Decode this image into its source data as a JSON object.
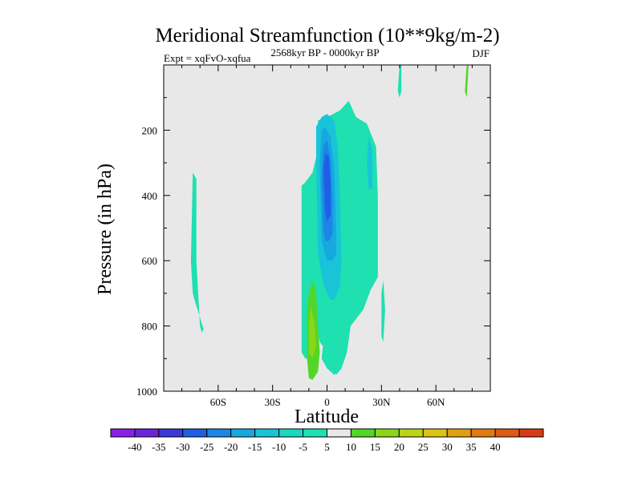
{
  "chart_data": {
    "type": "heatmap",
    "title": "Meridional Streamfunction (10**9kg/m-2)",
    "subtitle_left": "Expt = xqFvO-xqfua",
    "subtitle_center": "2568kyr BP - 0000kyr BP",
    "subtitle_right": "DJF",
    "xlabel": "Latitude",
    "ylabel": "Pressure (in hPa)",
    "xlim": [
      -90,
      90
    ],
    "ylim": [
      1000,
      0
    ],
    "x_ticks": [
      {
        "value": -60,
        "label": "60S"
      },
      {
        "value": -30,
        "label": "30S"
      },
      {
        "value": 0,
        "label": "0"
      },
      {
        "value": 30,
        "label": "30N"
      },
      {
        "value": 60,
        "label": "60N"
      }
    ],
    "y_ticks": [
      {
        "value": 200,
        "label": "200"
      },
      {
        "value": 400,
        "label": "400"
      },
      {
        "value": 600,
        "label": "600"
      },
      {
        "value": 800,
        "label": "800"
      },
      {
        "value": 1000,
        "label": "1000"
      }
    ],
    "background_color": "#e8e8e8",
    "colorbar": {
      "labels": [
        "-40",
        "-35",
        "-30",
        "-25",
        "-20",
        "-15",
        "-10",
        "-5",
        "5",
        "10",
        "15",
        "20",
        "25",
        "30",
        "35",
        "40"
      ],
      "colors": [
        "#8a1fe6",
        "#6a24d9",
        "#3a3ad6",
        "#1f5fe6",
        "#1a86e6",
        "#18a8e0",
        "#19c4d8",
        "#18d8c0",
        "#1ee0b0",
        "#e8e8e8",
        "#52d628",
        "#8cd61a",
        "#bcd418",
        "#dcc414",
        "#e0a012",
        "#e07a14",
        "#dc5a16",
        "#d83a14"
      ]
    },
    "regions": [
      {
        "name": "cyan-core-main",
        "level": -5,
        "color": "#1ee0b0",
        "points": [
          [
            -14,
            880
          ],
          [
            -14,
            370
          ],
          [
            -12,
            360
          ],
          [
            -8,
            330
          ],
          [
            -5,
            260
          ],
          [
            -5,
            170
          ],
          [
            0,
            160
          ],
          [
            7,
            140
          ],
          [
            12,
            110
          ],
          [
            16,
            160
          ],
          [
            22,
            180
          ],
          [
            27,
            250
          ],
          [
            28,
            400
          ],
          [
            28,
            650
          ],
          [
            24,
            690
          ],
          [
            20,
            750
          ],
          [
            13,
            800
          ],
          [
            11,
            880
          ],
          [
            8,
            930
          ],
          [
            5,
            950
          ],
          [
            3,
            910
          ],
          [
            2,
            890
          ],
          [
            -4,
            850
          ],
          [
            -6,
            800
          ],
          [
            -10,
            900
          ],
          [
            -12,
            900
          ]
        ]
      },
      {
        "name": "cyan-far-south",
        "level": -5,
        "color": "#1ee0b0",
        "points": [
          [
            -74,
            330
          ],
          [
            -72,
            350
          ],
          [
            -72,
            600
          ],
          [
            -70,
            800
          ],
          [
            -69,
            820
          ],
          [
            -68,
            810
          ],
          [
            -73,
            720
          ],
          [
            -74,
            700
          ],
          [
            -75,
            600
          ]
        ]
      },
      {
        "name": "cyan-north-sliver",
        "level": -5,
        "color": "#1ee0b0",
        "points": [
          [
            31,
            660
          ],
          [
            32,
            750
          ],
          [
            31,
            850
          ],
          [
            30,
            830
          ],
          [
            30,
            700
          ]
        ]
      },
      {
        "name": "cyan-north-top",
        "level": -5,
        "color": "#1ee0b0",
        "points": [
          [
            40,
            0
          ],
          [
            41,
            0
          ],
          [
            41,
            80
          ],
          [
            40,
            100
          ],
          [
            39,
            80
          ]
        ]
      },
      {
        "name": "cyan-south-lower",
        "level": -5,
        "color": "#1ee0b0",
        "points": [
          [
            -2,
            850
          ],
          [
            2,
            820
          ],
          [
            6,
            880
          ],
          [
            6,
            940
          ],
          [
            4,
            950
          ],
          [
            0,
            930
          ],
          [
            -3,
            900
          ]
        ]
      },
      {
        "name": "blue-outer",
        "level": -10,
        "color": "#19c4d8",
        "points": [
          [
            -5,
            580
          ],
          [
            -6,
            260
          ],
          [
            -6,
            190
          ],
          [
            -3,
            160
          ],
          [
            0,
            150
          ],
          [
            4,
            170
          ],
          [
            6,
            260
          ],
          [
            7,
            400
          ],
          [
            8,
            600
          ],
          [
            7,
            680
          ],
          [
            4,
            720
          ],
          [
            2,
            720
          ],
          [
            0,
            700
          ],
          [
            -2,
            670
          ]
        ]
      },
      {
        "name": "blue-side-north",
        "level": -10,
        "color": "#19c4d8",
        "points": [
          [
            23,
            220
          ],
          [
            25,
            260
          ],
          [
            25,
            380
          ],
          [
            23,
            380
          ],
          [
            22,
            300
          ]
        ]
      },
      {
        "name": "blue-mid",
        "level": -15,
        "color": "#18a8e0",
        "points": [
          [
            -3,
            540
          ],
          [
            -4,
            300
          ],
          [
            -3,
            200
          ],
          [
            -1,
            190
          ],
          [
            2,
            220
          ],
          [
            4,
            320
          ],
          [
            5,
            500
          ],
          [
            5,
            580
          ],
          [
            3,
            600
          ],
          [
            0,
            600
          ]
        ]
      },
      {
        "name": "blue-inner",
        "level": -20,
        "color": "#1a86e6",
        "points": [
          [
            -2,
            500
          ],
          [
            -3,
            350
          ],
          [
            -2,
            250
          ],
          [
            0,
            230
          ],
          [
            2,
            290
          ],
          [
            3,
            420
          ],
          [
            3,
            520
          ],
          [
            1,
            540
          ],
          [
            -1,
            540
          ]
        ]
      },
      {
        "name": "blue-core",
        "level": -25,
        "color": "#1f5fe6",
        "points": [
          [
            -1,
            450
          ],
          [
            -2,
            320
          ],
          [
            -1,
            270
          ],
          [
            1,
            280
          ],
          [
            2,
            360
          ],
          [
            2,
            460
          ],
          [
            0,
            480
          ]
        ]
      },
      {
        "name": "green-south-outer",
        "level": 5,
        "color": "#52d628",
        "points": [
          [
            -8,
            660
          ],
          [
            -6,
            700
          ],
          [
            -5,
            800
          ],
          [
            -4,
            880
          ],
          [
            -5,
            940
          ],
          [
            -8,
            965
          ],
          [
            -10,
            960
          ],
          [
            -11,
            900
          ],
          [
            -11,
            760
          ],
          [
            -10,
            700
          ]
        ]
      },
      {
        "name": "green-south-inner",
        "level": 10,
        "color": "#8cd61a",
        "points": [
          [
            -9,
            740
          ],
          [
            -7,
            790
          ],
          [
            -6,
            860
          ],
          [
            -8,
            900
          ],
          [
            -10,
            880
          ],
          [
            -10,
            800
          ]
        ]
      },
      {
        "name": "green-north-top",
        "level": 5,
        "color": "#52d628",
        "points": [
          [
            77,
            0
          ],
          [
            78,
            0
          ],
          [
            77,
            100
          ],
          [
            76,
            80
          ]
        ]
      }
    ]
  }
}
